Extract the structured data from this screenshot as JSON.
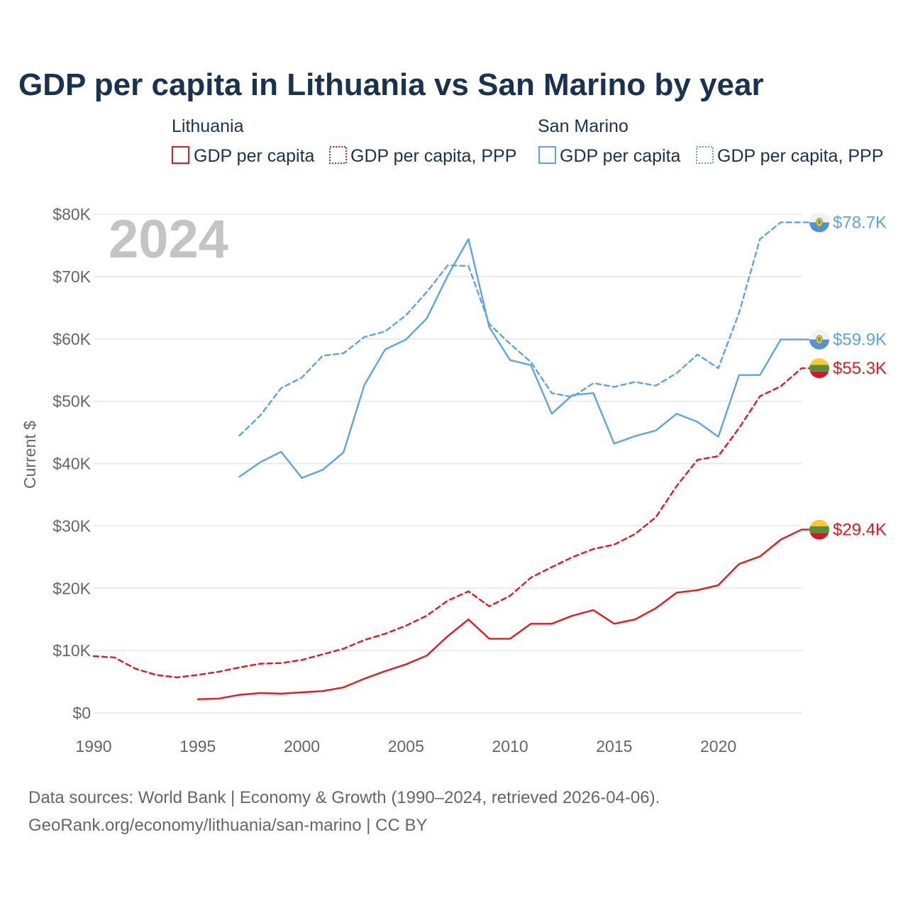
{
  "title": "GDP per capita in Lithuania vs San Marino by year",
  "current_year": "2024",
  "legend": {
    "lithuania": {
      "label": "Lithuania",
      "color": "#e8171c",
      "items": [
        "GDP per capita",
        "GDP per capita, PPP"
      ]
    },
    "san_marino": {
      "label": "San Marino",
      "color": "#5ca4e5",
      "items": [
        "GDP per capita",
        "GDP per capita, PPP"
      ]
    }
  },
  "source": {
    "line1": "Data sources: World Bank | Economy & Growth (1990–2024, retrieved 2026-04-06).",
    "line2": "GeoRank.org/economy/lithuania/san-marino | CC BY"
  },
  "chart_data": {
    "type": "line",
    "title": "GDP per capita in Lithuania vs San Marino by year",
    "ylabel": "Current $",
    "xlabel": "",
    "xlim": [
      1990,
      2024
    ],
    "ylim": [
      0,
      80000
    ],
    "x_ticks": [
      1990,
      1995,
      2000,
      2005,
      2010,
      2015,
      2020
    ],
    "x_tick_labels": [
      "1990",
      "1995",
      "2000",
      "2005",
      "2010",
      "2015",
      "2020"
    ],
    "y_ticks": [
      0,
      10000,
      20000,
      30000,
      40000,
      50000,
      60000,
      70000,
      80000
    ],
    "y_tick_labels": [
      "$0",
      "$10K",
      "$20K",
      "$30K",
      "$40K",
      "$50K",
      "$60K",
      "$70K",
      "$80K"
    ],
    "series": [
      {
        "name": "San Marino GDP per capita, PPP",
        "country": "San Marino",
        "style": "dashed",
        "color": "#5ca4e5",
        "end_label": "$78.7K",
        "x": [
          1997,
          1998,
          1999,
          2000,
          2001,
          2002,
          2003,
          2004,
          2005,
          2006,
          2007,
          2008,
          2009,
          2010,
          2011,
          2012,
          2013,
          2014,
          2015,
          2016,
          2017,
          2018,
          2019,
          2020,
          2021,
          2022,
          2023,
          2024
        ],
        "values": [
          44500,
          47700,
          52100,
          53800,
          57300,
          57700,
          60300,
          61200,
          63800,
          67500,
          71800,
          71700,
          62400,
          59200,
          56300,
          51300,
          50700,
          52900,
          52300,
          53100,
          52500,
          54500,
          57500,
          55300,
          64200,
          76000,
          78700,
          78700
        ]
      },
      {
        "name": "San Marino GDP per capita",
        "country": "San Marino",
        "style": "solid",
        "color": "#5ca4e5",
        "end_label": "$59.9K",
        "x": [
          1997,
          1998,
          1999,
          2000,
          2001,
          2002,
          2003,
          2004,
          2005,
          2006,
          2007,
          2008,
          2009,
          2010,
          2011,
          2012,
          2013,
          2014,
          2015,
          2016,
          2017,
          2018,
          2019,
          2020,
          2021,
          2022,
          2023,
          2024
        ],
        "values": [
          37900,
          40200,
          41900,
          37700,
          39000,
          41800,
          52600,
          58300,
          59900,
          63300,
          70100,
          76000,
          61900,
          56600,
          55800,
          48000,
          51000,
          51300,
          43200,
          44400,
          45300,
          48000,
          46700,
          44300,
          54200,
          54200,
          59900,
          59900
        ]
      },
      {
        "name": "Lithuania GDP per capita, PPP",
        "country": "Lithuania",
        "style": "dashed",
        "color": "#e8171c",
        "end_label": "$55.3K",
        "x": [
          1990,
          1991,
          1992,
          1993,
          1994,
          1995,
          1996,
          1997,
          1998,
          1999,
          2000,
          2001,
          2002,
          2003,
          2004,
          2005,
          2006,
          2007,
          2008,
          2009,
          2010,
          2011,
          2012,
          2013,
          2014,
          2015,
          2016,
          2017,
          2018,
          2019,
          2020,
          2021,
          2022,
          2023,
          2024
        ],
        "values": [
          9100,
          8900,
          7100,
          6100,
          5700,
          6100,
          6600,
          7300,
          7900,
          8000,
          8500,
          9400,
          10300,
          11700,
          12700,
          14000,
          15600,
          18000,
          19500,
          17100,
          18800,
          21700,
          23400,
          25000,
          26300,
          27000,
          28700,
          31400,
          36400,
          40600,
          41200,
          45700,
          50800,
          52400,
          55300
        ]
      },
      {
        "name": "Lithuania GDP per capita",
        "country": "Lithuania",
        "style": "solid",
        "color": "#e8171c",
        "end_label": "$29.4K",
        "x": [
          1995,
          1996,
          1997,
          1998,
          1999,
          2000,
          2001,
          2002,
          2003,
          2004,
          2005,
          2006,
          2007,
          2008,
          2009,
          2010,
          2011,
          2012,
          2013,
          2014,
          2015,
          2016,
          2017,
          2018,
          2019,
          2020,
          2021,
          2022,
          2023,
          2024
        ],
        "values": [
          2200,
          2300,
          2900,
          3200,
          3100,
          3300,
          3500,
          4100,
          5500,
          6700,
          7800,
          9200,
          12300,
          15000,
          11900,
          11900,
          14300,
          14300,
          15600,
          16500,
          14300,
          15000,
          16800,
          19300,
          19700,
          20500,
          23900,
          25100,
          27800,
          29400
        ]
      }
    ]
  }
}
